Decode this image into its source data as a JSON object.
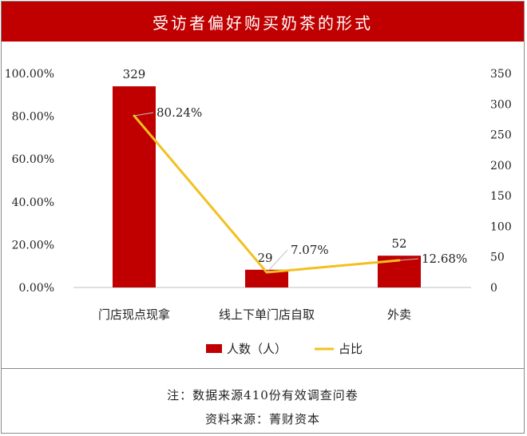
{
  "title": "受访者偏好购买奶茶的形式",
  "note": "注：数据来源410份有效调查问卷",
  "source": "资料来源：菁财资本",
  "colors": {
    "bar": "#c00000",
    "line": "#f2c01e",
    "title_bg": "#c00000"
  },
  "chart_data": {
    "type": "bar",
    "categories": [
      "门店现点现拿",
      "线上下单门店自取",
      "外卖"
    ],
    "series": [
      {
        "name": "人数（人）",
        "type": "bar",
        "axis": "right",
        "values": [
          329,
          29,
          52
        ],
        "labels": [
          "329",
          "29",
          "52"
        ]
      },
      {
        "name": "占比",
        "type": "line",
        "axis": "left",
        "values": [
          80.24,
          7.07,
          12.68
        ],
        "labels": [
          "80.24%",
          "7.07%",
          "12.68%"
        ]
      }
    ],
    "y_left": {
      "min": 0,
      "max": 100,
      "ticks": [
        "0.00%",
        "20.00%",
        "40.00%",
        "60.00%",
        "80.00%",
        "100.00%"
      ]
    },
    "y_right": {
      "min": 0,
      "max": 350,
      "ticks": [
        "0",
        "50",
        "100",
        "150",
        "200",
        "250",
        "300",
        "350"
      ]
    },
    "legend": {
      "position": "bottom",
      "items": [
        "人数（人）",
        "占比"
      ]
    }
  }
}
